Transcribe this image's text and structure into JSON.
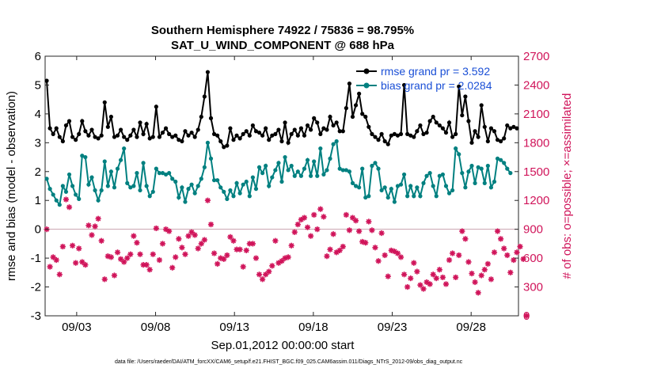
{
  "chart_data": {
    "type": "line",
    "title_line1": "Southern Hemisphere 74922 / 75836 = 98.795%",
    "title_line2": "SAT_U_WIND_COMPONENT @ 688 hPa",
    "xlabel": "Sep.01,2012 00:00:00 start",
    "ylabel": "rmse and bias (model - observation)",
    "y2label": "# of obs: o=possible; ×=assimilated",
    "footnote": "data file: /Users/raeder/DAI/ATM_forcXX/CAM6_setup/f.e21.FHIST_BGC.f09_025.CAM6assim.011/Diags_NTrS_2012-09/obs_diag_output.nc",
    "x_range_days": [
      0,
      30
    ],
    "x_ticks": [
      {
        "day": 2,
        "label": "09/03"
      },
      {
        "day": 7,
        "label": "09/08"
      },
      {
        "day": 12,
        "label": "09/13"
      },
      {
        "day": 17,
        "label": "09/18"
      },
      {
        "day": 22,
        "label": "09/23"
      },
      {
        "day": 27,
        "label": "09/28"
      }
    ],
    "ylim": [
      -3,
      6
    ],
    "y_ticks": [
      "-3",
      "-2",
      "-1",
      "0",
      "1",
      "2",
      "3",
      "4",
      "5",
      "6"
    ],
    "y2lim": [
      0,
      2700
    ],
    "y2_ticks": [
      "0",
      "300",
      "600",
      "900",
      "1200",
      "1500",
      "1800",
      "2100",
      "2400",
      "2700"
    ],
    "legend": {
      "position": "top-right",
      "rmse_label": "rmse grand pr = 3.592",
      "bias_label": "bias grand pr = 2.0284"
    },
    "colors": {
      "rmse": "#000000",
      "bias": "#008080",
      "obs": "#d0145a",
      "zero_line": "#c9a3ae"
    },
    "series": [
      {
        "name": "rmse",
        "values": [
          5.15,
          3.5,
          3.3,
          3.5,
          3.2,
          3.05,
          3.6,
          3.75,
          3.2,
          3.1,
          3.3,
          3.75,
          3.4,
          3.25,
          3.45,
          3.2,
          3.15,
          3.25,
          4.4,
          3.55,
          3.9,
          3.2,
          3.25,
          3.45,
          3.2,
          3.1,
          3.25,
          3.45,
          3.2,
          3.7,
          3.3,
          3.65,
          3.15,
          3.2,
          4.25,
          3.2,
          3.35,
          3.5,
          3.3,
          3.2,
          3.25,
          3.1,
          3.05,
          3.4,
          3.25,
          3.35,
          3.2,
          3.45,
          3.9,
          4.6,
          5.45,
          3.85,
          3.3,
          3.25,
          3.05,
          2.85,
          2.9,
          3.5,
          3.1,
          3.25,
          3.15,
          3.3,
          3.4,
          3.25,
          3.6,
          3.4,
          3.35,
          3.25,
          3.5,
          3.1,
          3.25,
          3.3,
          3.45,
          3.05,
          3.7,
          3.0,
          3.3,
          3.45,
          3.25,
          3.5,
          3.25,
          3.6,
          3.45,
          3.85,
          3.7,
          3.3,
          3.5,
          3.45,
          3.9,
          3.6,
          3.7,
          3.4,
          3.4,
          4.2,
          5.05,
          3.9,
          4.3,
          4.7,
          4.0,
          3.9,
          3.55,
          3.3,
          3.2,
          3.1,
          3.3,
          3.05,
          2.95,
          3.25,
          3.3,
          3.25,
          3.3,
          5.0,
          3.3,
          3.25,
          3.2,
          3.4,
          3.6,
          3.3,
          3.35,
          3.75,
          3.9,
          3.7,
          3.6,
          3.5,
          3.35,
          3.7,
          3.2,
          3.3,
          4.95,
          3.95,
          4.6,
          3.75,
          3.0,
          3.4,
          3.2,
          4.3,
          3.55,
          3.05,
          3.5,
          3.4,
          3.1,
          3.05,
          3.15,
          3.6,
          3.5,
          3.55,
          3.5
        ]
      },
      {
        "name": "bias",
        "values": [
          1.75,
          1.4,
          1.2,
          1.0,
          0.85,
          1.5,
          1.3,
          1.9,
          1.5,
          1.2,
          1.05,
          2.55,
          2.5,
          1.55,
          1.8,
          1.35,
          1.0,
          1.35,
          2.35,
          1.5,
          2.0,
          1.45,
          2.1,
          2.4,
          2.8,
          1.6,
          1.45,
          1.5,
          1.95,
          1.35,
          2.3,
          1.5,
          1.15,
          1.3,
          2.1,
          1.95,
          1.95,
          1.9,
          1.95,
          1.75,
          1.65,
          1.1,
          1.45,
          0.95,
          1.4,
          1.55,
          1.25,
          1.5,
          1.75,
          2.15,
          3.0,
          2.45,
          1.7,
          1.7,
          1.45,
          1.3,
          1.05,
          1.35,
          1.15,
          1.6,
          1.25,
          1.55,
          1.65,
          1.15,
          1.8,
          1.4,
          2.15,
          1.95,
          2.2,
          1.5,
          1.8,
          2.05,
          2.3,
          1.65,
          2.5,
          2.05,
          2.2,
          1.85,
          2.0,
          1.85,
          2.1,
          2.4,
          1.85,
          2.35,
          1.85,
          2.8,
          1.9,
          2.05,
          2.45,
          2.95,
          3.05,
          2.1,
          2.05,
          2.05,
          2.0,
          1.6,
          1.5,
          1.45,
          2.1,
          1.1,
          1.15,
          2.2,
          2.3,
          2.1,
          1.35,
          1.45,
          1.1,
          1.4,
          0.95,
          1.5,
          1.55,
          1.9,
          1.15,
          1.5,
          1.15,
          1.45,
          1.15,
          1.6,
          1.85,
          1.95,
          1.5,
          1.15,
          1.85,
          1.9,
          1.5,
          1.25,
          1.35,
          2.8,
          2.6,
          1.95,
          1.45,
          2.0,
          2.2,
          1.6,
          2.15,
          2.1,
          1.6,
          2.2,
          1.45,
          1.65,
          2.45,
          2.4,
          2.3,
          2.1,
          1.95
        ]
      },
      {
        "name": "obs_assimilated",
        "axis": "right",
        "values": [
          900,
          510,
          610,
          580,
          430,
          720,
          1210,
          1130,
          730,
          550,
          700,
          560,
          530,
          940,
          840,
          930,
          1010,
          780,
          380,
          620,
          610,
          420,
          660,
          590,
          560,
          600,
          640,
          830,
          760,
          640,
          530,
          530,
          480,
          640,
          910,
          580,
          750,
          900,
          880,
          500,
          610,
          800,
          710,
          640,
          830,
          870,
          840,
          700,
          750,
          790,
          1200,
          950,
          650,
          540,
          600,
          590,
          630,
          820,
          780,
          690,
          690,
          510,
          680,
          750,
          750,
          600,
          430,
          380,
          430,
          460,
          520,
          780,
          550,
          570,
          600,
          610,
          730,
          870,
          950,
          1000,
          1020,
          920,
          830,
          1050,
          900,
          1110,
          1030,
          620,
          690,
          850,
          660,
          680,
          720,
          1050,
          890,
          1020,
          990,
          880,
          770,
          760,
          980,
          890,
          710,
          570,
          860,
          630,
          410,
          680,
          670,
          650,
          610,
          430,
          300,
          390,
          550,
          460,
          320,
          280,
          350,
          330,
          430,
          390,
          480,
          400,
          330,
          580,
          650,
          400,
          630,
          880,
          800,
          560,
          440,
          350,
          240,
          420,
          480,
          540,
          380,
          660,
          880,
          800,
          700,
          630,
          450,
          580,
          660,
          720,
          590,
          0
        ]
      }
    ]
  }
}
